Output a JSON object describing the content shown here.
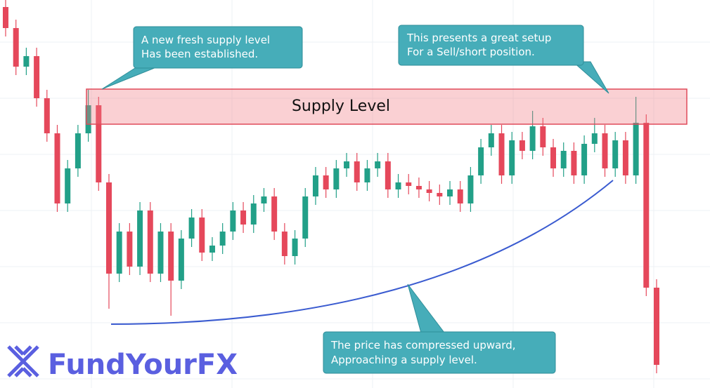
{
  "chart_data": {
    "type": "candlestick",
    "ylim": [
      0,
      553
    ],
    "up_color": "#22a088",
    "down_color": "#e5485b",
    "open": [
      543,
      513,
      458,
      473,
      413,
      363,
      263,
      313,
      363,
      403,
      293,
      163,
      223,
      173,
      253,
      163,
      223,
      153,
      213,
      243,
      193,
      203,
      223,
      253,
      233,
      263,
      273,
      223,
      188,
      213,
      273,
      303,
      283,
      313,
      323,
      293,
      313,
      323,
      283,
      293,
      288,
      283,
      278,
      273,
      283,
      263,
      303,
      343,
      363,
      303,
      353,
      338,
      373,
      343,
      313,
      338,
      303,
      348,
      363,
      313,
      353,
      303,
      378,
      143
    ],
    "high": [
      555,
      525,
      485,
      485,
      425,
      375,
      325,
      375,
      425,
      415,
      305,
      235,
      235,
      265,
      265,
      235,
      235,
      225,
      255,
      255,
      215,
      235,
      265,
      265,
      275,
      285,
      285,
      235,
      225,
      285,
      315,
      315,
      325,
      335,
      335,
      325,
      335,
      335,
      305,
      305,
      300,
      295,
      290,
      295,
      295,
      315,
      355,
      375,
      375,
      365,
      365,
      395,
      385,
      355,
      350,
      350,
      360,
      385,
      375,
      365,
      365,
      415,
      390,
      155
    ],
    "low": [
      501,
      446,
      446,
      401,
      351,
      251,
      251,
      301,
      351,
      281,
      113,
      151,
      161,
      161,
      151,
      151,
      103,
      141,
      201,
      181,
      181,
      191,
      211,
      221,
      221,
      251,
      211,
      176,
      176,
      201,
      261,
      271,
      271,
      301,
      281,
      281,
      301,
      271,
      271,
      276,
      271,
      266,
      261,
      261,
      251,
      251,
      291,
      331,
      291,
      291,
      326,
      326,
      331,
      301,
      301,
      291,
      291,
      336,
      301,
      301,
      291,
      291,
      131,
      21
    ],
    "close": [
      513,
      458,
      473,
      413,
      363,
      263,
      313,
      363,
      403,
      293,
      163,
      223,
      173,
      253,
      163,
      223,
      153,
      213,
      243,
      193,
      203,
      223,
      253,
      233,
      263,
      273,
      223,
      188,
      213,
      273,
      303,
      283,
      313,
      323,
      293,
      313,
      323,
      283,
      293,
      288,
      283,
      278,
      273,
      283,
      263,
      303,
      343,
      363,
      303,
      353,
      338,
      373,
      343,
      313,
      338,
      303,
      348,
      363,
      313,
      353,
      303,
      378,
      143,
      33
    ],
    "zone": {
      "label": "Supply Level",
      "low": 376,
      "high": 426
    },
    "annotations": [
      [
        "A new fresh supply level",
        "Has been established."
      ],
      [
        "This presents a great setup",
        "For a Sell/short position."
      ],
      [
        "The price has compressed upward,",
        "Approaching a supply level."
      ]
    ]
  },
  "brand": "FundYourFX"
}
